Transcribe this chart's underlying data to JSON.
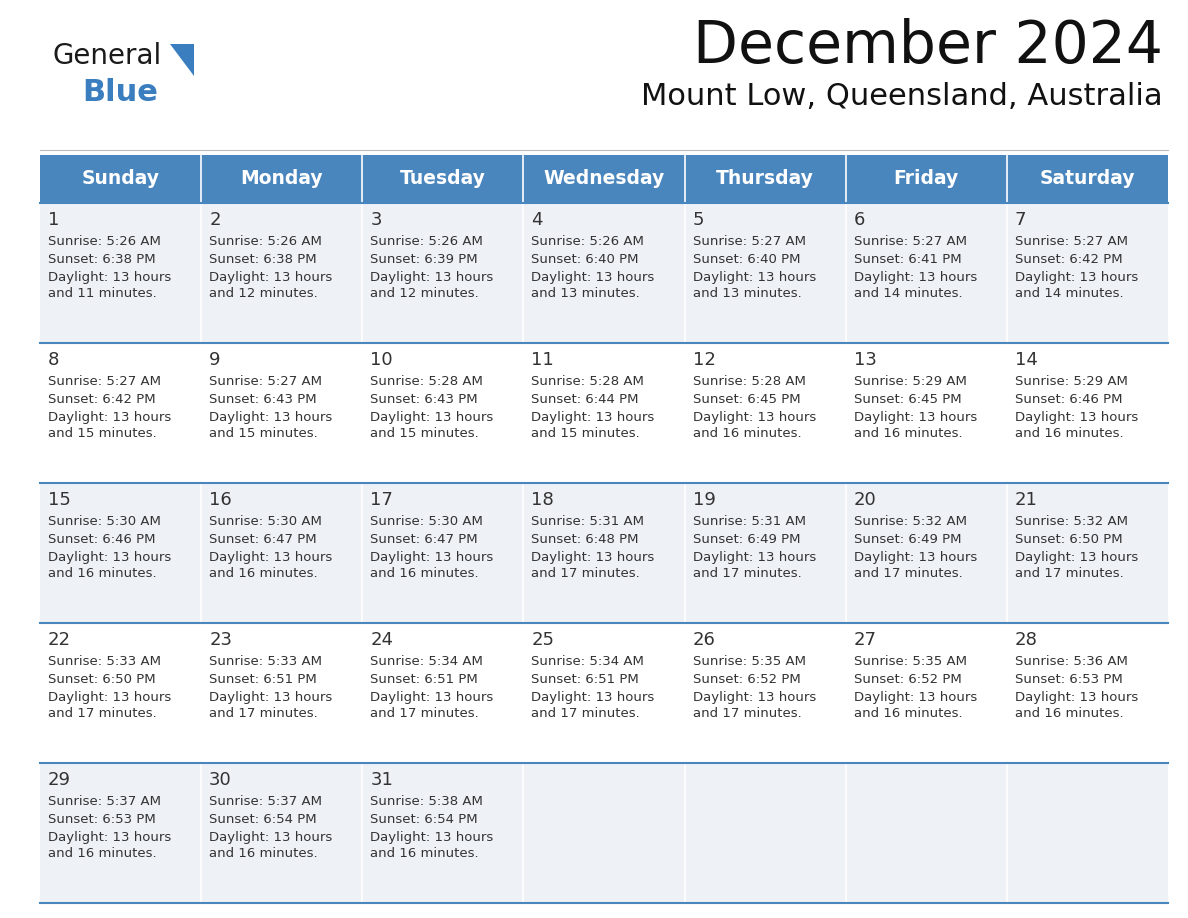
{
  "title": "December 2024",
  "subtitle": "Mount Low, Queensland, Australia",
  "days_of_week": [
    "Sunday",
    "Monday",
    "Tuesday",
    "Wednesday",
    "Thursday",
    "Friday",
    "Saturday"
  ],
  "header_bg": "#4a86be",
  "header_text_color": "#ffffff",
  "row_bg_light": "#eef2f7",
  "row_bg_white": "#ffffff",
  "border_color": "#4a86be",
  "text_color": "#333333",
  "calendar_data": [
    [
      {
        "day": "1",
        "sunrise": "5:26 AM",
        "sunset": "6:38 PM",
        "daylight_h": "13 hours",
        "daylight_m": "and 11 minutes."
      },
      {
        "day": "2",
        "sunrise": "5:26 AM",
        "sunset": "6:38 PM",
        "daylight_h": "13 hours",
        "daylight_m": "and 12 minutes."
      },
      {
        "day": "3",
        "sunrise": "5:26 AM",
        "sunset": "6:39 PM",
        "daylight_h": "13 hours",
        "daylight_m": "and 12 minutes."
      },
      {
        "day": "4",
        "sunrise": "5:26 AM",
        "sunset": "6:40 PM",
        "daylight_h": "13 hours",
        "daylight_m": "and 13 minutes."
      },
      {
        "day": "5",
        "sunrise": "5:27 AM",
        "sunset": "6:40 PM",
        "daylight_h": "13 hours",
        "daylight_m": "and 13 minutes."
      },
      {
        "day": "6",
        "sunrise": "5:27 AM",
        "sunset": "6:41 PM",
        "daylight_h": "13 hours",
        "daylight_m": "and 14 minutes."
      },
      {
        "day": "7",
        "sunrise": "5:27 AM",
        "sunset": "6:42 PM",
        "daylight_h": "13 hours",
        "daylight_m": "and 14 minutes."
      }
    ],
    [
      {
        "day": "8",
        "sunrise": "5:27 AM",
        "sunset": "6:42 PM",
        "daylight_h": "13 hours",
        "daylight_m": "and 15 minutes."
      },
      {
        "day": "9",
        "sunrise": "5:27 AM",
        "sunset": "6:43 PM",
        "daylight_h": "13 hours",
        "daylight_m": "and 15 minutes."
      },
      {
        "day": "10",
        "sunrise": "5:28 AM",
        "sunset": "6:43 PM",
        "daylight_h": "13 hours",
        "daylight_m": "and 15 minutes."
      },
      {
        "day": "11",
        "sunrise": "5:28 AM",
        "sunset": "6:44 PM",
        "daylight_h": "13 hours",
        "daylight_m": "and 15 minutes."
      },
      {
        "day": "12",
        "sunrise": "5:28 AM",
        "sunset": "6:45 PM",
        "daylight_h": "13 hours",
        "daylight_m": "and 16 minutes."
      },
      {
        "day": "13",
        "sunrise": "5:29 AM",
        "sunset": "6:45 PM",
        "daylight_h": "13 hours",
        "daylight_m": "and 16 minutes."
      },
      {
        "day": "14",
        "sunrise": "5:29 AM",
        "sunset": "6:46 PM",
        "daylight_h": "13 hours",
        "daylight_m": "and 16 minutes."
      }
    ],
    [
      {
        "day": "15",
        "sunrise": "5:30 AM",
        "sunset": "6:46 PM",
        "daylight_h": "13 hours",
        "daylight_m": "and 16 minutes."
      },
      {
        "day": "16",
        "sunrise": "5:30 AM",
        "sunset": "6:47 PM",
        "daylight_h": "13 hours",
        "daylight_m": "and 16 minutes."
      },
      {
        "day": "17",
        "sunrise": "5:30 AM",
        "sunset": "6:47 PM",
        "daylight_h": "13 hours",
        "daylight_m": "and 16 minutes."
      },
      {
        "day": "18",
        "sunrise": "5:31 AM",
        "sunset": "6:48 PM",
        "daylight_h": "13 hours",
        "daylight_m": "and 17 minutes."
      },
      {
        "day": "19",
        "sunrise": "5:31 AM",
        "sunset": "6:49 PM",
        "daylight_h": "13 hours",
        "daylight_m": "and 17 minutes."
      },
      {
        "day": "20",
        "sunrise": "5:32 AM",
        "sunset": "6:49 PM",
        "daylight_h": "13 hours",
        "daylight_m": "and 17 minutes."
      },
      {
        "day": "21",
        "sunrise": "5:32 AM",
        "sunset": "6:50 PM",
        "daylight_h": "13 hours",
        "daylight_m": "and 17 minutes."
      }
    ],
    [
      {
        "day": "22",
        "sunrise": "5:33 AM",
        "sunset": "6:50 PM",
        "daylight_h": "13 hours",
        "daylight_m": "and 17 minutes."
      },
      {
        "day": "23",
        "sunrise": "5:33 AM",
        "sunset": "6:51 PM",
        "daylight_h": "13 hours",
        "daylight_m": "and 17 minutes."
      },
      {
        "day": "24",
        "sunrise": "5:34 AM",
        "sunset": "6:51 PM",
        "daylight_h": "13 hours",
        "daylight_m": "and 17 minutes."
      },
      {
        "day": "25",
        "sunrise": "5:34 AM",
        "sunset": "6:51 PM",
        "daylight_h": "13 hours",
        "daylight_m": "and 17 minutes."
      },
      {
        "day": "26",
        "sunrise": "5:35 AM",
        "sunset": "6:52 PM",
        "daylight_h": "13 hours",
        "daylight_m": "and 17 minutes."
      },
      {
        "day": "27",
        "sunrise": "5:35 AM",
        "sunset": "6:52 PM",
        "daylight_h": "13 hours",
        "daylight_m": "and 16 minutes."
      },
      {
        "day": "28",
        "sunrise": "5:36 AM",
        "sunset": "6:53 PM",
        "daylight_h": "13 hours",
        "daylight_m": "and 16 minutes."
      }
    ],
    [
      {
        "day": "29",
        "sunrise": "5:37 AM",
        "sunset": "6:53 PM",
        "daylight_h": "13 hours",
        "daylight_m": "and 16 minutes."
      },
      {
        "day": "30",
        "sunrise": "5:37 AM",
        "sunset": "6:54 PM",
        "daylight_h": "13 hours",
        "daylight_m": "and 16 minutes."
      },
      {
        "day": "31",
        "sunrise": "5:38 AM",
        "sunset": "6:54 PM",
        "daylight_h": "13 hours",
        "daylight_m": "and 16 minutes."
      },
      null,
      null,
      null,
      null
    ]
  ],
  "logo_dark_color": "#1a1a1a",
  "logo_blue_color": "#3a7ebf",
  "fig_width": 11.88,
  "fig_height": 9.18,
  "dpi": 100
}
